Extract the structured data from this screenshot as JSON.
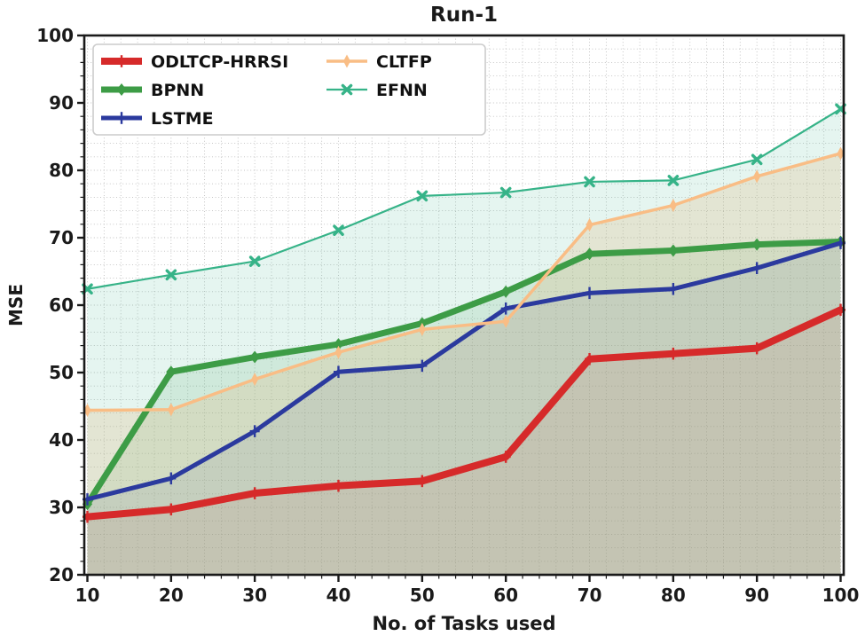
{
  "page_title": "Run-1",
  "chart_data": {
    "type": "line",
    "title": "Run-1",
    "xlabel": "No. of Tasks used",
    "ylabel": "MSE",
    "x": [
      10,
      20,
      30,
      40,
      50,
      60,
      70,
      80,
      90,
      100
    ],
    "xlim": [
      10,
      100
    ],
    "ylim": [
      20,
      100
    ],
    "x_tick_labels": [
      "10",
      "20",
      "30",
      "40",
      "50",
      "60",
      "70",
      "80",
      "90",
      "100"
    ],
    "y_tick_labels": [
      "20",
      "30",
      "40",
      "50",
      "60",
      "70",
      "80",
      "90",
      "100"
    ],
    "x_major_tick_step": 10,
    "y_major_tick_step": 10,
    "minor_tick_step": 2,
    "grid": "dotted-minor-on",
    "legend_position": "upper-left",
    "legend_columns": 2,
    "axis_color": "#1a1a1a",
    "grid_color": "#ababab",
    "series": [
      {
        "name": "ODLTCP-HRRSI",
        "color": "#d62a2a",
        "line_width": 8,
        "marker": "plus",
        "fill_opacity": 0.1,
        "values": [
          28.6,
          29.7,
          32.1,
          33.2,
          33.9,
          37.5,
          52.0,
          52.8,
          53.6,
          59.3
        ]
      },
      {
        "name": "BPNN",
        "color": "#3d9c46",
        "line_width": 7,
        "marker": "diamond",
        "fill_opacity": 0.13,
        "values": [
          30.5,
          50.1,
          52.3,
          54.2,
          57.3,
          62.0,
          67.6,
          68.1,
          69.0,
          69.4
        ]
      },
      {
        "name": "LSTME",
        "color": "#2b3a9e",
        "line_width": 5,
        "marker": "plus",
        "fill_opacity": 0.11,
        "values": [
          31.2,
          34.3,
          41.3,
          50.1,
          51.0,
          59.5,
          61.8,
          62.4,
          65.5,
          69.2
        ]
      },
      {
        "name": "CLTFP",
        "color": "#f9bd85",
        "line_width": 3.5,
        "marker": "thin-diamond",
        "fill_opacity": 0.27,
        "values": [
          44.4,
          44.5,
          49.0,
          53.0,
          56.4,
          57.6,
          71.9,
          74.8,
          79.1,
          82.5
        ]
      },
      {
        "name": "EFNN",
        "color": "#36b388",
        "line_width": 2.2,
        "marker": "x",
        "fill_opacity": 0.13,
        "values": [
          62.4,
          64.5,
          66.5,
          71.1,
          76.2,
          76.7,
          78.3,
          78.5,
          81.6,
          89.1
        ]
      }
    ],
    "legend_column1": [
      "ODLTCP-HRRSI",
      "BPNN",
      "LSTME"
    ],
    "legend_column2": [
      "CLTFP",
      "EFNN"
    ]
  }
}
